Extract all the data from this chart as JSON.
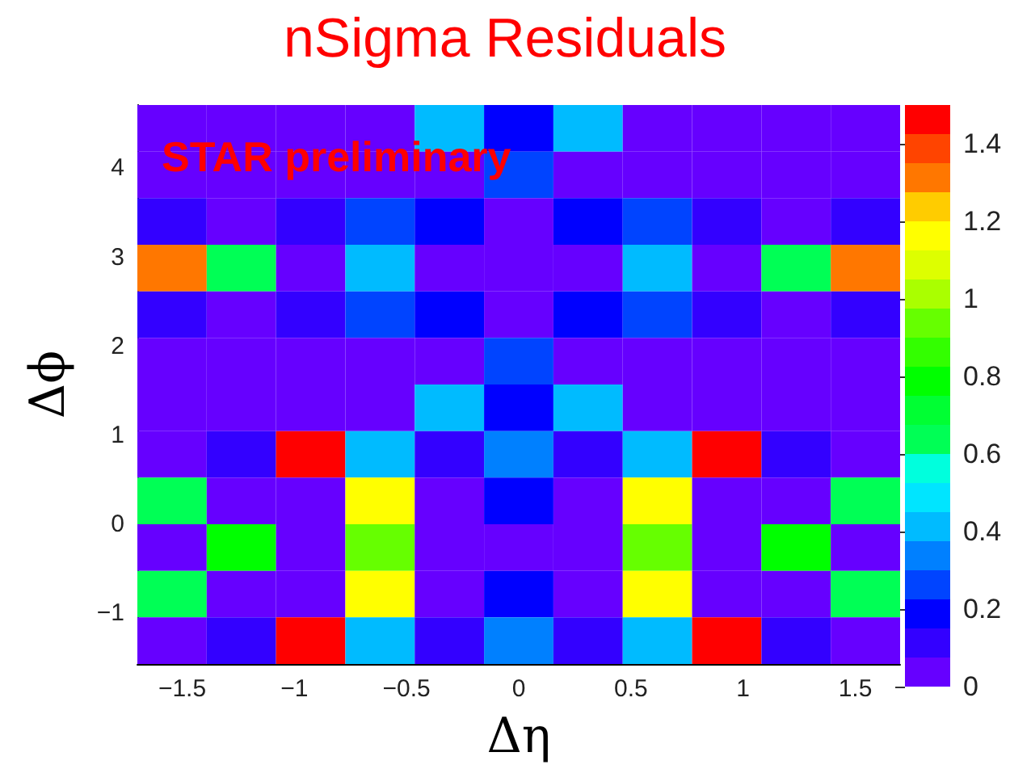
{
  "chart_data": {
    "type": "heatmap",
    "title": "nSigma Residuals",
    "xlabel": "Δη",
    "ylabel": "Δϕ",
    "annotations": [
      "STAR preliminary"
    ],
    "xlim": [
      -1.7,
      1.7
    ],
    "ylim": [
      -1.571,
      4.712
    ],
    "xticks": [
      -1.5,
      -1,
      -0.5,
      0,
      0.5,
      1,
      1.5
    ],
    "yticks": [
      -1,
      0,
      1,
      2,
      3,
      4
    ],
    "clim": [
      0,
      1.5
    ],
    "cticks": [
      0,
      0.2,
      0.4,
      0.6,
      0.8,
      1,
      1.2,
      1.4
    ],
    "cells": [
      [
        0.05,
        0.05,
        0.05,
        0.05,
        0.42,
        0.2,
        0.42,
        0.05,
        0.05,
        0.05,
        0.05
      ],
      [
        0.05,
        0.05,
        0.05,
        0.05,
        0.05,
        0.27,
        0.05,
        0.05,
        0.05,
        0.05,
        0.05
      ],
      [
        0.12,
        0.05,
        0.12,
        0.27,
        0.2,
        0.05,
        0.2,
        0.27,
        0.12,
        0.05,
        0.12
      ],
      [
        1.3,
        0.65,
        0.05,
        0.42,
        0.05,
        0.05,
        0.05,
        0.42,
        0.05,
        0.65,
        1.3
      ],
      [
        0.12,
        0.05,
        0.12,
        0.27,
        0.2,
        0.05,
        0.2,
        0.27,
        0.12,
        0.05,
        0.12
      ],
      [
        0.05,
        0.05,
        0.05,
        0.05,
        0.05,
        0.27,
        0.05,
        0.05,
        0.05,
        0.05,
        0.05
      ],
      [
        0.05,
        0.05,
        0.05,
        0.05,
        0.42,
        0.2,
        0.42,
        0.05,
        0.05,
        0.05,
        0.05
      ],
      [
        0.05,
        0.12,
        1.45,
        0.42,
        0.12,
        0.33,
        0.12,
        0.42,
        1.45,
        0.12,
        0.05
      ],
      [
        0.65,
        0.05,
        0.05,
        1.15,
        0.05,
        0.2,
        0.05,
        1.15,
        0.05,
        0.05,
        0.65
      ],
      [
        0.05,
        0.8,
        0.05,
        0.95,
        0.05,
        0.05,
        0.05,
        0.95,
        0.05,
        0.8,
        0.05
      ],
      [
        0.65,
        0.05,
        0.05,
        1.15,
        0.05,
        0.2,
        0.05,
        1.15,
        0.05,
        0.05,
        0.65
      ],
      [
        0.05,
        0.12,
        1.45,
        0.42,
        0.12,
        0.33,
        0.12,
        0.42,
        1.45,
        0.12,
        0.05
      ]
    ]
  }
}
